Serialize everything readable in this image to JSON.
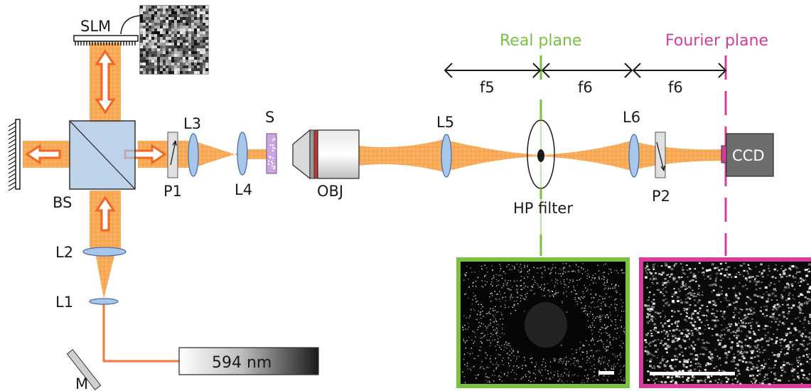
{
  "labels": {
    "slm": "SLM",
    "bs": "BS",
    "p1": "P1",
    "l3": "L3",
    "l4": "L4",
    "s": "S",
    "obj": "OBJ",
    "l5": "L5",
    "l6": "L6",
    "p2": "P2",
    "ccd": "CCD",
    "hp_filter": "HP filter",
    "l2": "L2",
    "l1": "L1",
    "m": "M",
    "laser": "594 nm",
    "f5": "f5",
    "f6a": "f6",
    "f6b": "f6",
    "real_plane": "Real plane",
    "fourier_plane": "Fourier plane"
  },
  "colors": {
    "beam": "#f7a041",
    "beam_light": "#fcd39c",
    "laser_line": "#f07a3a",
    "arrow": "#f26522",
    "real_plane": "#7ac143",
    "fourier_plane": "#d63c98",
    "lens": "#a7c6ea",
    "lens_stroke": "#4a6ea8",
    "cube": "#8faed3",
    "ccd": "#6d6d6d"
  }
}
